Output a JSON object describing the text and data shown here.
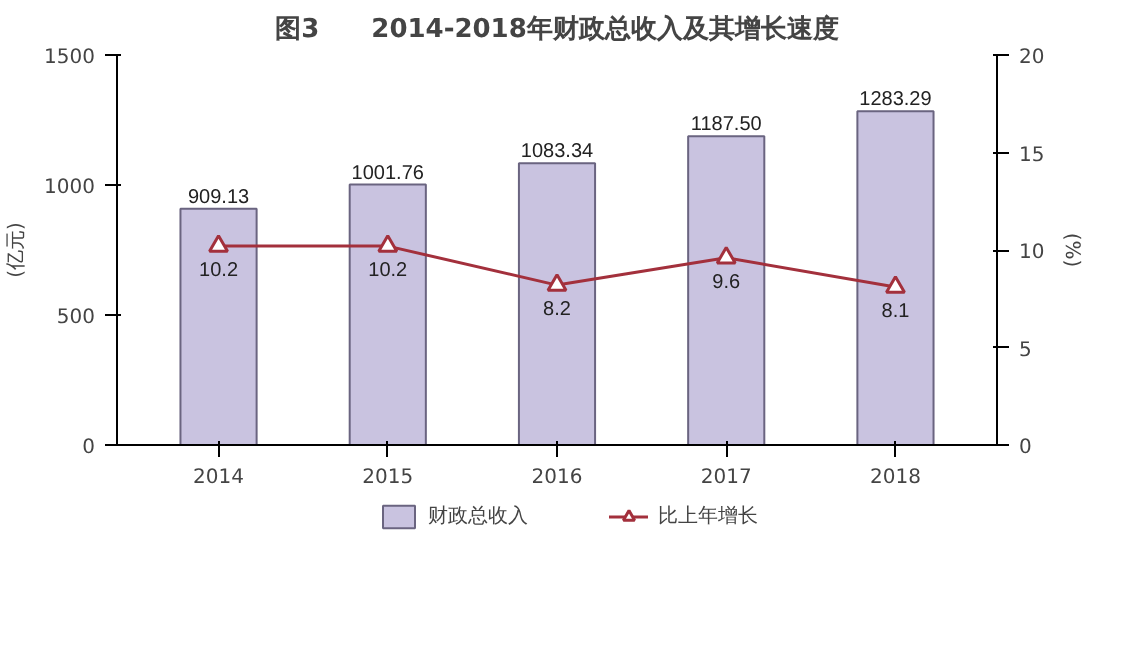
{
  "chart_data": {
    "type": "bar",
    "title": "图3　　2014-2018年财政总收入及其增长速度",
    "categories": [
      "2014",
      "2015",
      "2016",
      "2017",
      "2018"
    ],
    "ylabel": "(亿元)",
    "y2label": "(%)",
    "ylim": [
      0,
      1500
    ],
    "yticks": [
      0,
      500,
      1000,
      1500
    ],
    "y2lim": [
      0,
      20
    ],
    "y2ticks": [
      0,
      5,
      10,
      15,
      20
    ],
    "series": [
      {
        "name": "财政总收入",
        "color": "#c9c3e0",
        "values": [
          909.13,
          1001.76,
          1083.34,
          1187.5,
          1283.29
        ],
        "value_labels": [
          "909.13",
          "1001.76",
          "1083.34",
          "1187.50",
          "1283.29"
        ]
      },
      {
        "name": "比上年增长",
        "type": "line",
        "axis": "y2",
        "color": "#a3303c",
        "marker": "triangle",
        "values": [
          10.2,
          10.2,
          8.2,
          9.6,
          8.1
        ],
        "value_labels": [
          "10.2",
          "10.2",
          "8.2",
          "9.6",
          "8.1"
        ]
      }
    ],
    "legend": "bottom",
    "grid": false
  }
}
